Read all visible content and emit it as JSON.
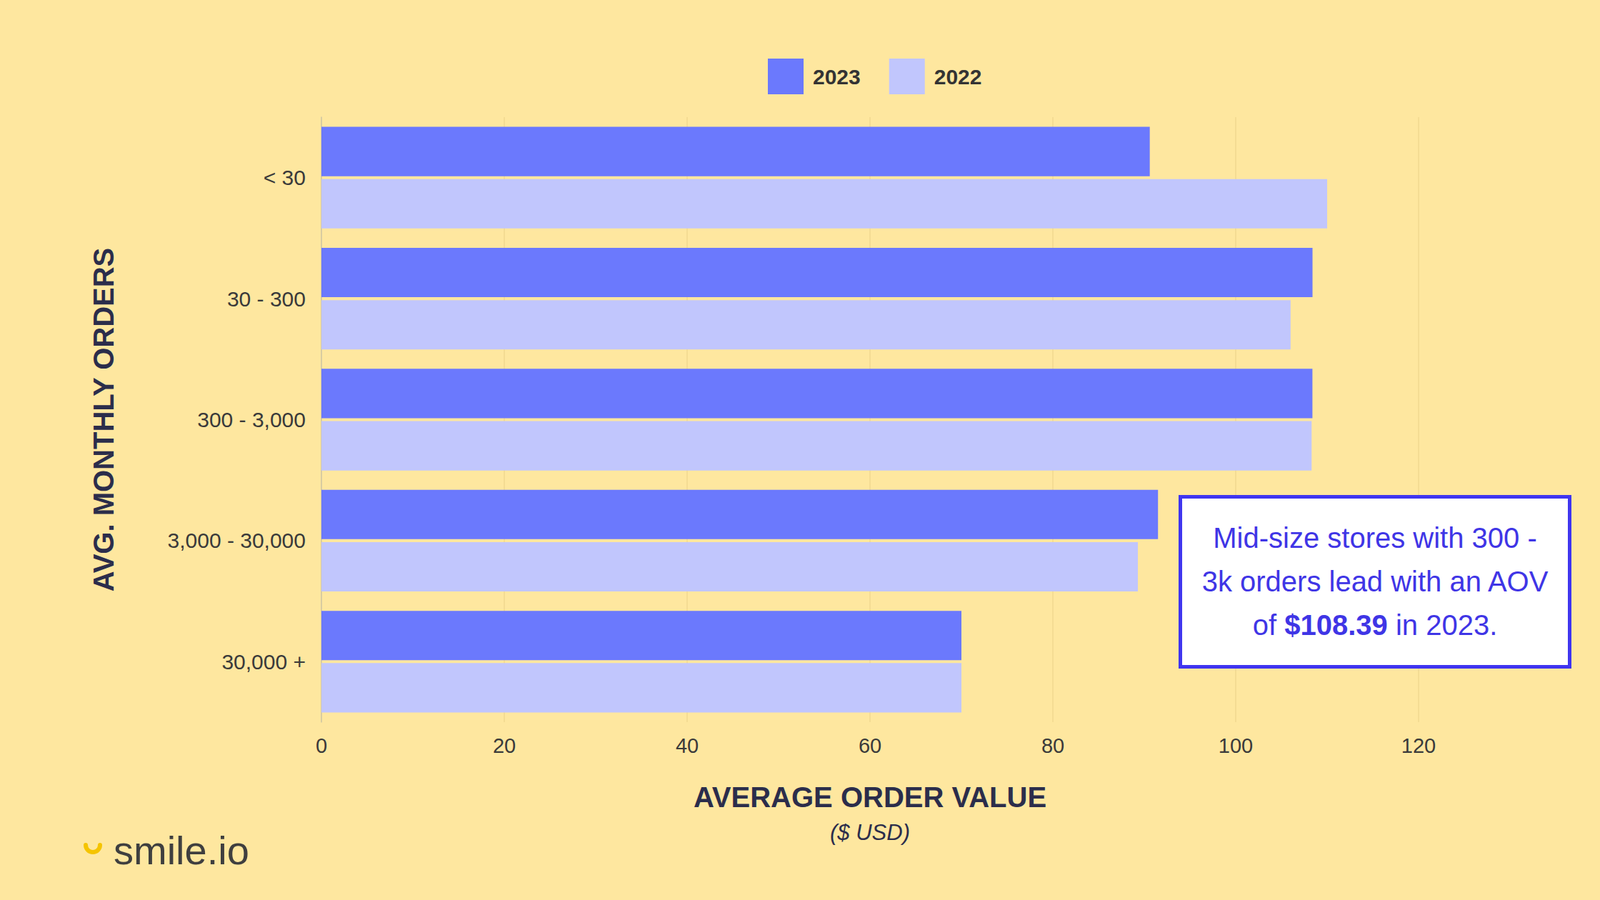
{
  "chart_data": {
    "type": "bar",
    "orientation": "horizontal",
    "categories": [
      "< 30",
      "30 - 300",
      "300 - 3,000",
      "3,000 - 30,000",
      "30,000 +"
    ],
    "series": [
      {
        "name": "2023",
        "color": "#6b79fd",
        "values": [
          90.6,
          108.4,
          108.39,
          91.5,
          70.0
        ]
      },
      {
        "name": "2022",
        "color": "#c1c6fd",
        "values": [
          110.0,
          106.0,
          108.3,
          89.3,
          70.0
        ]
      }
    ],
    "x_label": "AVERAGE ORDER VALUE",
    "x_label_sub": "($ USD)",
    "y_label": "AVG. MONTHLY ORDERS",
    "xlim": [
      0,
      120
    ],
    "xticks": [
      0,
      20,
      40,
      60,
      80,
      100,
      120
    ],
    "grid": true,
    "legend": "top",
    "data_labels": false,
    "annotation": [
      "Mid-size stores with 300 - 3k orders lead with an AOV of ",
      "$108.39",
      " in 2023."
    ],
    "logo": "smile.io"
  }
}
